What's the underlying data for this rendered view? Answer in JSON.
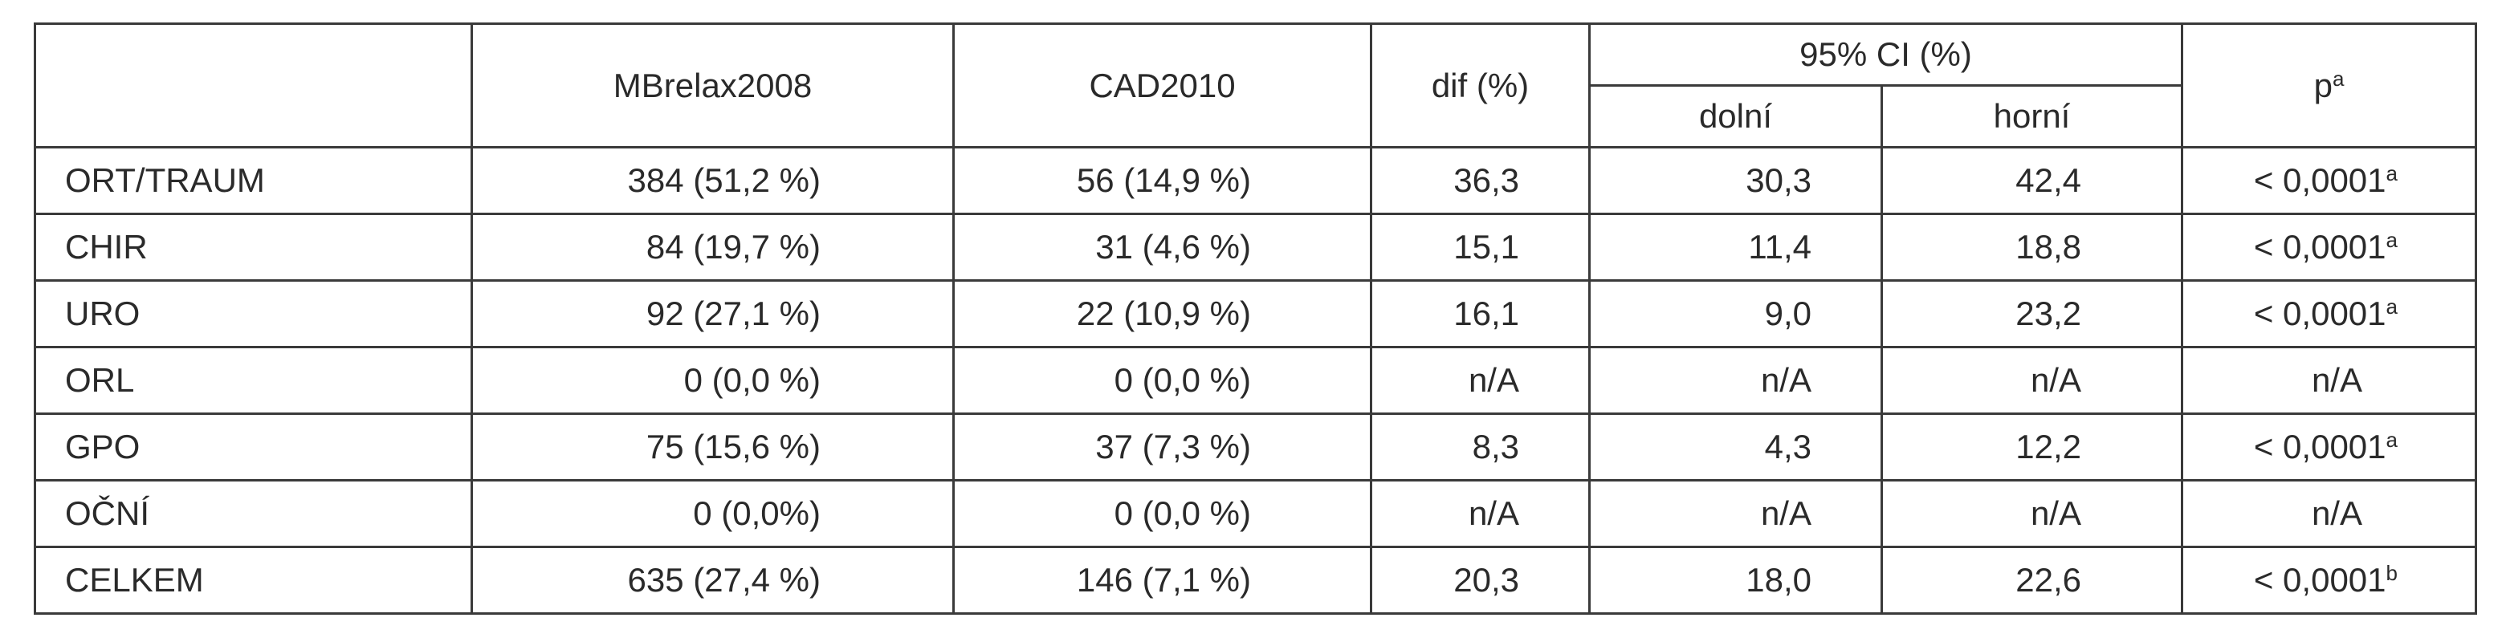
{
  "table": {
    "headers": {
      "empty": "",
      "col1": "MBrelax2008",
      "col2": "CAD2010",
      "col3": "dif (%)",
      "ci_group": "95% CI (%)",
      "ci_low": "dolní",
      "ci_high": "horní",
      "p": "p",
      "p_sup": "a"
    },
    "rows": [
      {
        "label": "ORT/TRAUM",
        "mb": "384 (51,2 %)",
        "cad": "56 (14,9 %)",
        "dif": "36,3",
        "low": "30,3",
        "high": "42,4",
        "p": "< 0,0001",
        "sup": "a"
      },
      {
        "label": "CHIR",
        "mb": "84 (19,7 %)",
        "cad": "31 (4,6 %)",
        "dif": "15,1",
        "low": "11,4",
        "high": "18,8",
        "p": "< 0,0001",
        "sup": "a"
      },
      {
        "label": "URO",
        "mb": "92 (27,1 %)",
        "cad": "22 (10,9 %)",
        "dif": "16,1",
        "low": "9,0",
        "high": "23,2",
        "p": "< 0,0001",
        "sup": "a"
      },
      {
        "label": "ORL",
        "mb": "0 (0,0 %)",
        "cad": "0 (0,0 %)",
        "dif": "n/A",
        "low": "n/A",
        "high": "n/A",
        "p": "n/A",
        "sup": ""
      },
      {
        "label": "GPO",
        "mb": "75 (15,6 %)",
        "cad": "37 (7,3 %)",
        "dif": "8,3",
        "low": "4,3",
        "high": "12,2",
        "p": "< 0,0001",
        "sup": "a"
      },
      {
        "label": "OČNÍ",
        "mb": "0 (0,0%)",
        "cad": "0 (0,0 %)",
        "dif": "n/A",
        "low": "n/A",
        "high": "n/A",
        "p": "n/A",
        "sup": ""
      },
      {
        "label": "CELKEM",
        "mb": "635 (27,4 %)",
        "cad": "146 (7,1 %)",
        "dif": "20,3",
        "low": "18,0",
        "high": "22,6",
        "p": "< 0,0001",
        "sup": "b"
      }
    ]
  }
}
